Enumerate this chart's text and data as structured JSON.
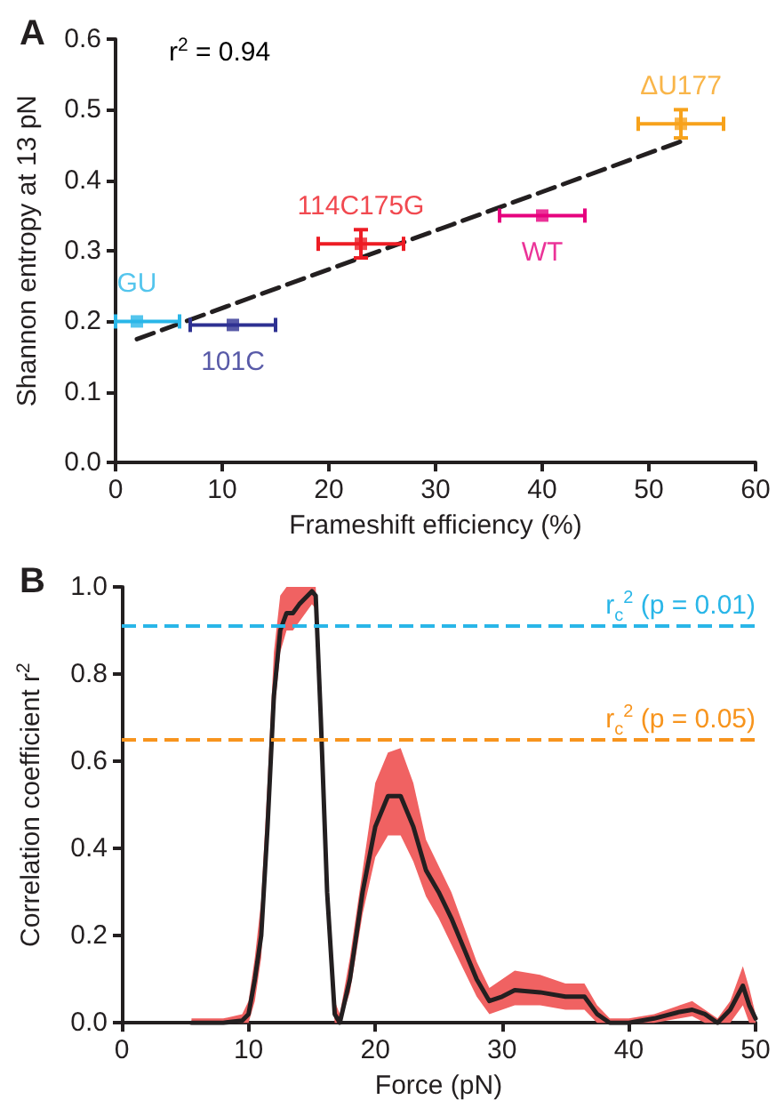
{
  "chart_data": [
    {
      "type": "scatter",
      "title": "A",
      "xlabel": "Frameshift efficiency (%)",
      "ylabel": "Shannon entropy at 13 pN",
      "annotations": [
        "r$^{2}$ = 0.94"
      ],
      "xlim": [
        0,
        60
      ],
      "xticks": [
        0,
        10,
        20,
        30,
        40,
        50,
        60
      ],
      "ylim": [
        0,
        0.6
      ],
      "yticks": [
        {
          "value": 0,
          "label": "0.0"
        },
        {
          "value": 0.1,
          "label": "0.1"
        },
        {
          "value": 0.2,
          "label": "0.2"
        },
        {
          "value": 0.3,
          "label": "0.3"
        },
        {
          "value": 0.4,
          "label": "0.4"
        },
        {
          "value": 0.5,
          "label": "0.5"
        },
        {
          "value": 0.6,
          "label": "0.6"
        }
      ],
      "grid": false,
      "legend": false,
      "marker": "square",
      "series": [
        {
          "name": "GU",
          "color": "#29b6e8",
          "x": [
            2
          ],
          "values": [
            0.2
          ],
          "xerrors": [
            [
              0,
              6
            ]
          ],
          "errors": [
            null
          ]
        },
        {
          "name": "101C",
          "color": "#2e3192",
          "x": [
            11
          ],
          "values": [
            0.195
          ],
          "xerrors": [
            [
              7,
              15
            ]
          ],
          "errors": [
            null
          ]
        },
        {
          "name": "114C175G",
          "color": "#ed1c24",
          "x": [
            23
          ],
          "values": [
            0.31
          ],
          "xerrors": [
            [
              19,
              27
            ]
          ],
          "errors": [
            [
              0.29,
              0.33
            ]
          ]
        },
        {
          "name": "WT",
          "color": "#e6007e",
          "x": [
            40
          ],
          "values": [
            0.35
          ],
          "xerrors": [
            [
              36,
              44
            ]
          ],
          "errors": [
            null
          ]
        },
        {
          "name": "ΔU177",
          "color": "#f7a21b",
          "x": [
            53
          ],
          "values": [
            0.48
          ],
          "xerrors": [
            [
              49,
              57
            ]
          ],
          "errors": [
            [
              0.46,
              0.5
            ]
          ]
        },
        {
          "type": "line",
          "color": "#231f20",
          "line_style": "dashed",
          "marker": "none",
          "x": [
            2,
            53
          ],
          "values": [
            0.175,
            0.455
          ]
        }
      ]
    },
    {
      "type": "line",
      "title": "B",
      "xlabel": "Force (pN)",
      "ylabel": "Correlation coefficient r$^{2}$",
      "xlim": [
        0,
        50
      ],
      "xticks": [
        0,
        10,
        20,
        30,
        40,
        50
      ],
      "ylim": [
        0,
        1
      ],
      "yticks": [
        {
          "value": 0,
          "label": "0.0"
        },
        {
          "value": 0.2,
          "label": "0.2"
        },
        {
          "value": 0.4,
          "label": "0.4"
        },
        {
          "value": 0.6,
          "label": "0.6"
        },
        {
          "value": 0.8,
          "label": "0.8"
        },
        {
          "value": 1,
          "label": "1.0"
        }
      ],
      "grid": false,
      "legend": false,
      "marker": "none",
      "line_style": "solid",
      "ref_lines": [
        {
          "axis": "y",
          "value": 0.91,
          "color": "#29b6e8",
          "line_style": "dashed"
        },
        {
          "axis": "y",
          "value": 0.65,
          "color": "#f7941d",
          "line_style": "dashed"
        }
      ],
      "annotations": [
        {
          "text": "r$_{c}$$^{2}$ (p = 0.01)",
          "x": 50,
          "y": 0.91
        },
        {
          "text": "r$_{c}$$^{2}$ (p = 0.05)",
          "x": 50,
          "y": 0.65
        }
      ],
      "series": [
        {
          "color": "#231f20",
          "x": [
            5.5,
            8,
            9.5,
            10,
            10.5,
            11,
            11.5,
            12,
            12.5,
            13,
            13.5,
            14,
            15,
            15.3,
            15.7,
            16.2,
            16.8,
            17.2,
            18,
            19,
            20,
            21,
            22,
            23,
            24,
            25,
            26,
            27,
            28,
            29,
            30,
            31,
            33,
            35,
            36.5,
            37.5,
            38.5,
            40,
            42,
            44,
            45,
            46,
            47,
            48,
            49,
            49.5,
            50
          ],
          "values": [
            0,
            0,
            0.005,
            0.02,
            0.1,
            0.2,
            0.45,
            0.75,
            0.9,
            0.94,
            0.94,
            0.96,
            0.99,
            0.98,
            0.7,
            0.3,
            0.02,
            0,
            0.1,
            0.3,
            0.45,
            0.52,
            0.52,
            0.45,
            0.35,
            0.3,
            0.24,
            0.17,
            0.1,
            0.05,
            0.06,
            0.075,
            0.07,
            0.06,
            0.06,
            0.02,
            0,
            0,
            0.01,
            0.025,
            0.03,
            0.02,
            0,
            0.03,
            0.085,
            0.04,
            0.01
          ],
          "lower": [
            0,
            0,
            0,
            0,
            0.05,
            0.15,
            0.4,
            0.7,
            0.85,
            0.9,
            0.9,
            0.92,
            0.96,
            0.95,
            0.65,
            0.25,
            0,
            0,
            0.07,
            0.25,
            0.38,
            0.43,
            0.43,
            0.37,
            0.29,
            0.24,
            0.18,
            0.12,
            0.06,
            0.02,
            0.03,
            0.04,
            0.04,
            0.03,
            0.03,
            0,
            0,
            0,
            0,
            0.01,
            0.015,
            0,
            0,
            0,
            0.04,
            0,
            0
          ],
          "upper": [
            0.01,
            0.01,
            0.02,
            0.05,
            0.15,
            0.28,
            0.55,
            0.85,
            0.98,
            1,
            1,
            1,
            1,
            1,
            0.75,
            0.35,
            0.05,
            0.02,
            0.15,
            0.35,
            0.55,
            0.62,
            0.63,
            0.55,
            0.42,
            0.36,
            0.3,
            0.22,
            0.14,
            0.08,
            0.1,
            0.12,
            0.11,
            0.09,
            0.09,
            0.04,
            0.01,
            0.01,
            0.02,
            0.04,
            0.05,
            0.03,
            0.01,
            0.05,
            0.13,
            0.08,
            0.02
          ]
        }
      ]
    }
  ]
}
